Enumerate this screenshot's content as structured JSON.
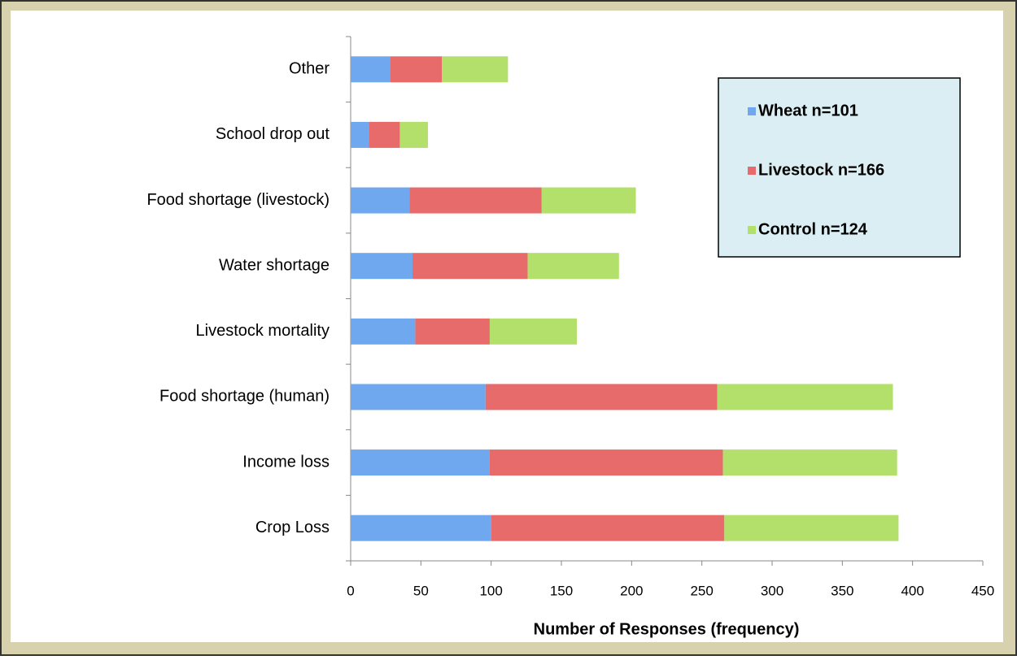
{
  "chart_data": {
    "type": "stacked-barh",
    "x_label": "Number of Responses (frequency)",
    "categories": [
      "Crop Loss",
      "Income loss",
      "Food shortage (human)",
      "Livestock mortality",
      "Water shortage",
      "Food shortage (livestock)",
      "School drop out",
      "Other"
    ],
    "series": [
      {
        "name": "Wheat n=101",
        "color": "#6fa8ee",
        "values": [
          100,
          99,
          96,
          46,
          44,
          42,
          13,
          28
        ]
      },
      {
        "name": "Livestock n=166",
        "color": "#e86b6b",
        "values": [
          166,
          166,
          165,
          53,
          82,
          94,
          22,
          37
        ]
      },
      {
        "name": "Control n=124",
        "color": "#b3df6b",
        "values": [
          124,
          124,
          125,
          62,
          65,
          67,
          20,
          47
        ]
      }
    ],
    "xlim": [
      0,
      450
    ],
    "xticks": [
      0,
      50,
      100,
      150,
      200,
      250,
      300,
      350,
      400,
      450
    ],
    "legend": "upper right"
  }
}
